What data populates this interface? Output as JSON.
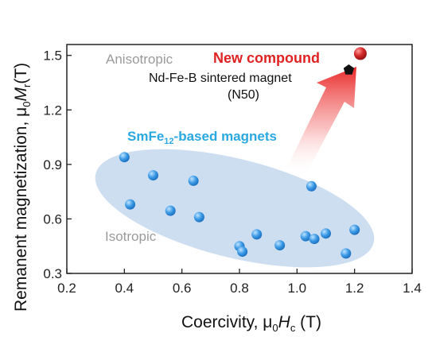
{
  "chart_data": {
    "type": "scatter",
    "xlabel": {
      "prefix": "Coercivity, μ",
      "sub": "0",
      "var": "H",
      "var_sub": "c",
      "unit": " (T)"
    },
    "ylabel": {
      "prefix": "Remanent magnetization, μ",
      "sub": "0",
      "var": "M",
      "var_sub": "r",
      "unit": "(T)"
    },
    "xlim": [
      0.2,
      1.4
    ],
    "ylim": [
      0.3,
      1.56
    ],
    "xticks": [
      "0.2",
      "0.4",
      "0.6",
      "0.8",
      "1.0",
      "1.2",
      "1.4"
    ],
    "yticks": [
      "0.3",
      "0.6",
      "0.9",
      "1.2",
      "1.5"
    ],
    "grid": false,
    "series": [
      {
        "name": "SmFe12-based magnets",
        "color": "#3a9be0",
        "points": [
          [
            0.4,
            0.94
          ],
          [
            0.42,
            0.68
          ],
          [
            0.5,
            0.84
          ],
          [
            0.56,
            0.645
          ],
          [
            0.64,
            0.81
          ],
          [
            0.66,
            0.61
          ],
          [
            0.8,
            0.45
          ],
          [
            0.81,
            0.42
          ],
          [
            0.86,
            0.515
          ],
          [
            0.94,
            0.455
          ],
          [
            1.03,
            0.505
          ],
          [
            1.05,
            0.78
          ],
          [
            1.06,
            0.49
          ],
          [
            1.1,
            0.52
          ],
          [
            1.17,
            0.41
          ],
          [
            1.2,
            0.54
          ]
        ]
      }
    ],
    "highlight_points": [
      {
        "label": "New compound",
        "x": 1.22,
        "y": 1.51,
        "color": "#d42a2a"
      },
      {
        "label": "Nd-Fe-B sintered magnet",
        "sublabel": "(N50)",
        "x": 1.18,
        "y": 1.42,
        "color": "#111111"
      }
    ],
    "annotations": {
      "anisotropic": "Anisotropic",
      "isotropic": "Isotropic",
      "group_label_main": "SmFe",
      "group_label_sub": "12",
      "group_label_rest": "-based magnets"
    },
    "colors": {
      "ellipse": "#c4d8ef",
      "group_label": "#2aa8e0",
      "new_compound": "#e02222",
      "region_label": "#9a9a9a",
      "arrow": "#ee3333"
    }
  }
}
